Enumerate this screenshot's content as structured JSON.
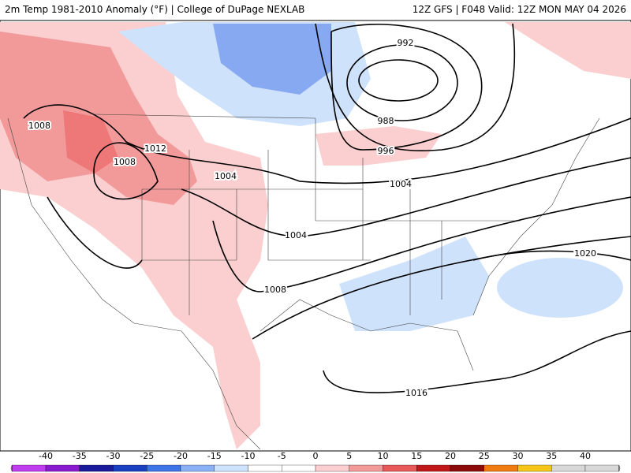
{
  "header": {
    "title": "2m Temp 1981-2010 Anomaly (°F) | College of DuPage NEXLAB",
    "run": "12Z GFS | F048 Valid: 12Z MON MAY 04 2026"
  },
  "contour_labels": [
    "992",
    "988",
    "996",
    "1008",
    "1012",
    "1008",
    "1004",
    "1004",
    "1004",
    "1008",
    "1020",
    "1016"
  ],
  "colorbar": {
    "labels": [
      -40,
      -35,
      -30,
      -25,
      -20,
      -15,
      -10,
      -5,
      0,
      5,
      10,
      15,
      20,
      25,
      30,
      35,
      40
    ]
  }
}
